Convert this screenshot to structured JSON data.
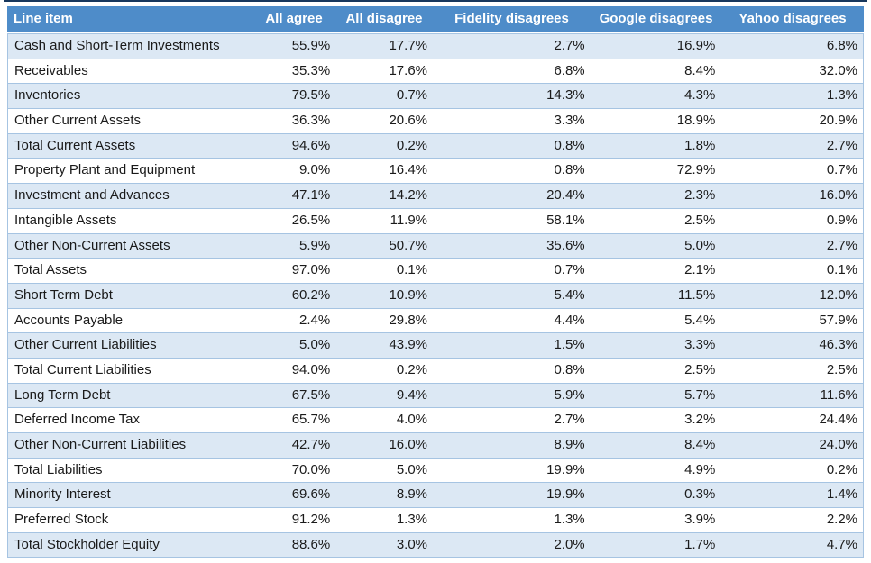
{
  "colors": {
    "top_line": "#17375D",
    "header_background": "#4E8CC9",
    "header_text": "#FFFFFF",
    "band_row_background": "#DCE8F4",
    "plain_row_background": "#FFFFFF",
    "row_border": "#A6C4E2",
    "body_text": "#1A1A1A"
  },
  "chart_data": {
    "type": "table",
    "columns": [
      "Line item",
      "All agree",
      "All disagree",
      "Fidelity disagrees",
      "Google disagrees",
      "Yahoo disagrees"
    ],
    "rows": [
      [
        "Cash and Short-Term Investments",
        "55.9%",
        "17.7%",
        "2.7%",
        "16.9%",
        "6.8%"
      ],
      [
        "Receivables",
        "35.3%",
        "17.6%",
        "6.8%",
        "8.4%",
        "32.0%"
      ],
      [
        "Inventories",
        "79.5%",
        "0.7%",
        "14.3%",
        "4.3%",
        "1.3%"
      ],
      [
        "Other Current Assets",
        "36.3%",
        "20.6%",
        "3.3%",
        "18.9%",
        "20.9%"
      ],
      [
        "Total Current Assets",
        "94.6%",
        "0.2%",
        "0.8%",
        "1.8%",
        "2.7%"
      ],
      [
        "Property Plant and Equipment",
        "9.0%",
        "16.4%",
        "0.8%",
        "72.9%",
        "0.7%"
      ],
      [
        "Investment and Advances",
        "47.1%",
        "14.2%",
        "20.4%",
        "2.3%",
        "16.0%"
      ],
      [
        "Intangible Assets",
        "26.5%",
        "11.9%",
        "58.1%",
        "2.5%",
        "0.9%"
      ],
      [
        "Other Non-Current Assets",
        "5.9%",
        "50.7%",
        "35.6%",
        "5.0%",
        "2.7%"
      ],
      [
        "Total Assets",
        "97.0%",
        "0.1%",
        "0.7%",
        "2.1%",
        "0.1%"
      ],
      [
        "Short Term Debt",
        "60.2%",
        "10.9%",
        "5.4%",
        "11.5%",
        "12.0%"
      ],
      [
        "Accounts Payable",
        "2.4%",
        "29.8%",
        "4.4%",
        "5.4%",
        "57.9%"
      ],
      [
        "Other Current Liabilities",
        "5.0%",
        "43.9%",
        "1.5%",
        "3.3%",
        "46.3%"
      ],
      [
        "Total Current Liabilities",
        "94.0%",
        "0.2%",
        "0.8%",
        "2.5%",
        "2.5%"
      ],
      [
        "Long Term Debt",
        "67.5%",
        "9.4%",
        "5.9%",
        "5.7%",
        "11.6%"
      ],
      [
        "Deferred Income Tax",
        "65.7%",
        "4.0%",
        "2.7%",
        "3.2%",
        "24.4%"
      ],
      [
        "Other Non-Current Liabilities",
        "42.7%",
        "16.0%",
        "8.9%",
        "8.4%",
        "24.0%"
      ],
      [
        "Total Liabilities",
        "70.0%",
        "5.0%",
        "19.9%",
        "4.9%",
        "0.2%"
      ],
      [
        "Minority Interest",
        "69.6%",
        "8.9%",
        "19.9%",
        "0.3%",
        "1.4%"
      ],
      [
        "Preferred Stock",
        "91.2%",
        "1.3%",
        "1.3%",
        "3.9%",
        "2.2%"
      ],
      [
        "Total Stockholder Equity",
        "88.6%",
        "3.0%",
        "2.0%",
        "1.7%",
        "4.7%"
      ]
    ]
  }
}
